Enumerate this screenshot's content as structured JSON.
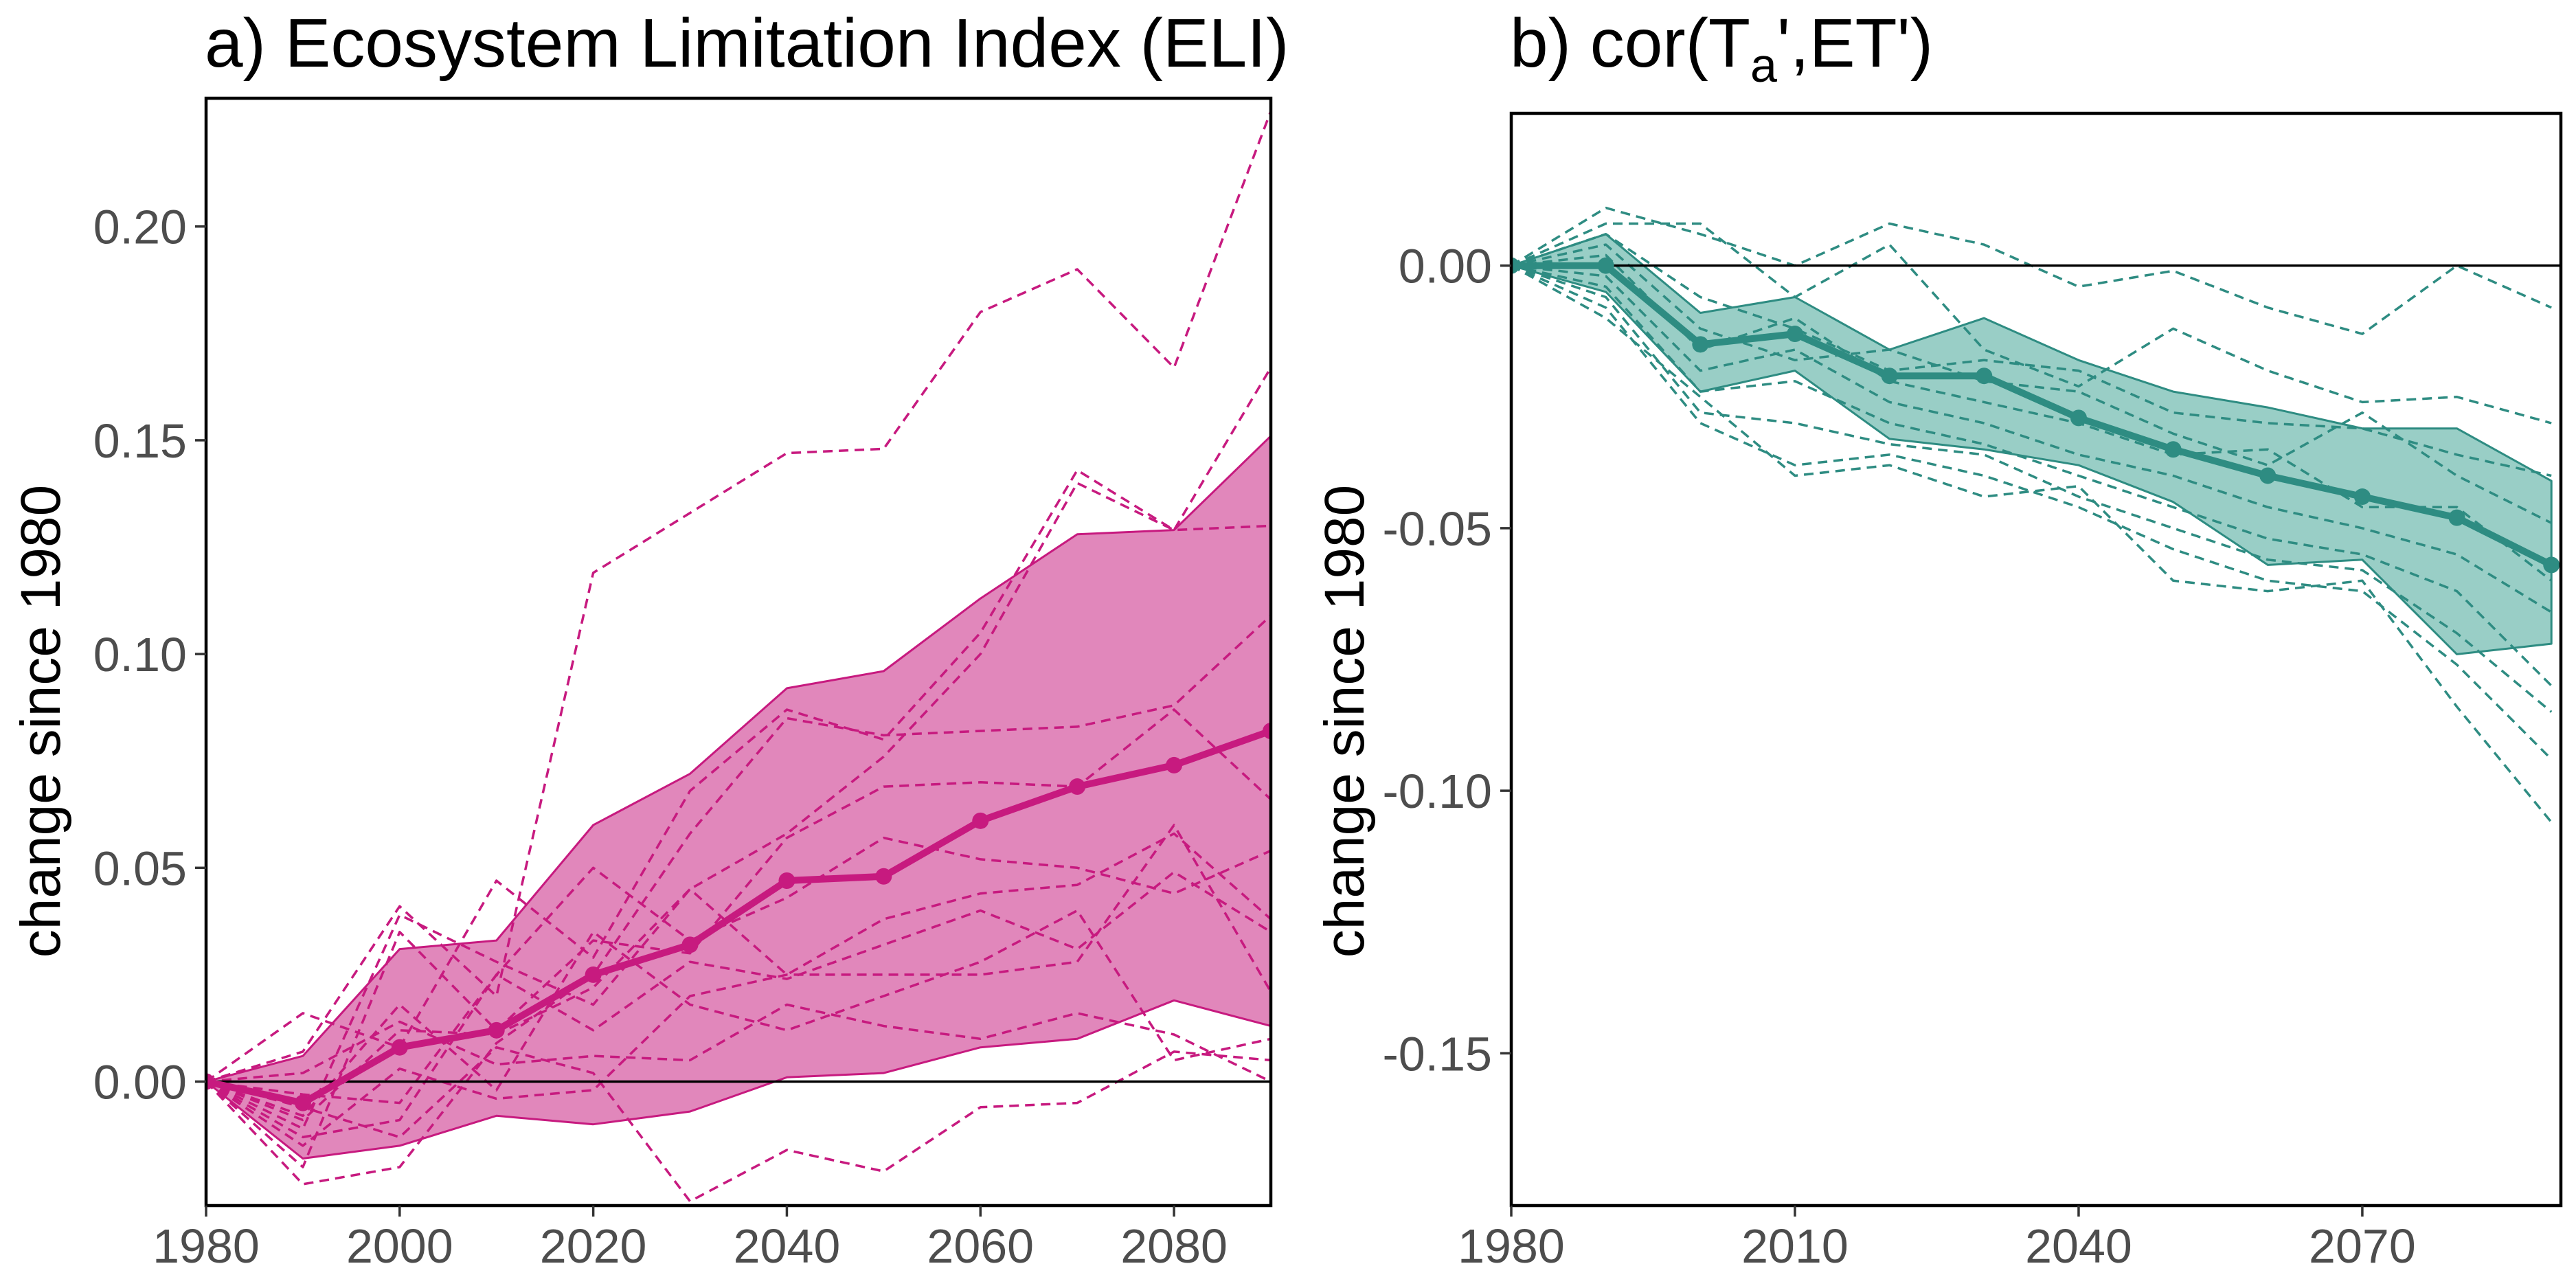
{
  "chart_data": [
    {
      "type": "line",
      "panel": "a",
      "title": "a) Ecosystem Limitation Index (ELI)",
      "ylabel": "change since 1980",
      "xlabel": "",
      "x": [
        1980,
        1990,
        2000,
        2010,
        2020,
        2030,
        2040,
        2050,
        2060,
        2070,
        2080,
        2090
      ],
      "xlim": [
        1980,
        2090
      ],
      "ylim": [
        -0.029,
        0.23
      ],
      "xticks": [
        1980,
        2000,
        2020,
        2040,
        2060,
        2080
      ],
      "xtick_labels": [
        "1980",
        "2000",
        "2020",
        "2040",
        "2060",
        "2080"
      ],
      "yticks": [
        0.0,
        0.05,
        0.1,
        0.15,
        0.2
      ],
      "ytick_labels": [
        "0.00",
        "0.05",
        "0.10",
        "0.15",
        "0.20"
      ],
      "reference_line_y": 0,
      "grid": false,
      "color": "#c71a7f",
      "fill_color": "#e187bb",
      "mean": [
        0.0,
        -0.005,
        0.008,
        0.012,
        0.025,
        0.032,
        0.047,
        0.048,
        0.061,
        0.069,
        0.074,
        0.082
      ],
      "band_upper": [
        0.0,
        0.006,
        0.031,
        0.033,
        0.06,
        0.072,
        0.092,
        0.096,
        0.113,
        0.128,
        0.129,
        0.151
      ],
      "band_lower": [
        0.0,
        -0.018,
        -0.015,
        -0.008,
        -0.01,
        -0.007,
        0.001,
        0.002,
        0.008,
        0.01,
        0.019,
        0.013
      ],
      "members": [
        [
          0.0,
          0.007,
          0.041,
          0.02,
          0.119,
          0.133,
          0.147,
          0.148,
          0.18,
          0.19,
          0.167,
          0.227
        ],
        [
          0.0,
          0.016,
          0.008,
          0.047,
          0.029,
          0.068,
          0.087,
          0.08,
          0.105,
          0.143,
          0.129,
          0.167
        ],
        [
          0.0,
          -0.011,
          0.039,
          0.028,
          0.018,
          0.045,
          0.058,
          0.076,
          0.1,
          0.14,
          0.129,
          0.13
        ],
        [
          0.0,
          -0.024,
          -0.02,
          0.009,
          0.025,
          0.058,
          0.085,
          0.081,
          0.082,
          0.083,
          0.088,
          0.109
        ],
        [
          0.0,
          -0.02,
          0.035,
          0.012,
          0.033,
          0.03,
          0.057,
          0.069,
          0.07,
          0.069,
          0.087,
          0.066
        ],
        [
          0.0,
          -0.013,
          -0.009,
          0.025,
          0.05,
          0.033,
          0.043,
          0.057,
          0.052,
          0.05,
          0.044,
          0.054
        ],
        [
          0.0,
          -0.009,
          0.012,
          0.011,
          0.022,
          0.045,
          0.025,
          0.038,
          0.044,
          0.046,
          0.058,
          0.038
        ],
        [
          0.0,
          -0.003,
          -0.005,
          0.025,
          0.012,
          0.028,
          0.024,
          0.032,
          0.04,
          0.031,
          0.049,
          0.035
        ],
        [
          0.0,
          -0.015,
          0.003,
          -0.004,
          -0.002,
          0.02,
          0.025,
          0.025,
          0.025,
          0.028,
          0.06,
          0.021
        ],
        [
          0.0,
          -0.008,
          0.018,
          -0.002,
          0.035,
          0.018,
          0.012,
          0.02,
          0.028,
          0.04,
          0.005,
          0.01
        ],
        [
          0.0,
          -0.006,
          -0.013,
          0.008,
          0.002,
          -0.028,
          -0.016,
          -0.021,
          -0.006,
          -0.005,
          0.007,
          0.005
        ],
        [
          0.0,
          0.002,
          0.014,
          0.004,
          0.006,
          0.005,
          0.018,
          0.013,
          0.01,
          0.016,
          0.011,
          0.0
        ]
      ]
    },
    {
      "type": "line",
      "panel": "b",
      "title": "b) cor(T",
      "title_subscript": "a",
      "title_suffix": "',ET')",
      "ylabel": "change since 1980",
      "xlabel": "",
      "x": [
        1980,
        1990,
        2000,
        2010,
        2020,
        2030,
        2040,
        2050,
        2060,
        2070,
        2080,
        2090
      ],
      "xlim": [
        1980,
        2091
      ],
      "ylim": [
        -0.179,
        0.029
      ],
      "xticks": [
        1980,
        2010,
        2040,
        2070
      ],
      "xtick_labels": [
        "1980",
        "2010",
        "2040",
        "2070"
      ],
      "yticks": [
        0.0,
        -0.05,
        -0.1,
        -0.15
      ],
      "ytick_labels": [
        "0.00",
        "-0.05",
        "-0.10",
        "-0.15"
      ],
      "reference_line_y": 0,
      "grid": false,
      "color": "#2e8c82",
      "fill_color": "#99cec6",
      "mean": [
        0.0,
        0.0,
        -0.015,
        -0.013,
        -0.021,
        -0.021,
        -0.029,
        -0.035,
        -0.04,
        -0.044,
        -0.048,
        -0.057
      ],
      "band_upper": [
        0.0,
        0.006,
        -0.009,
        -0.006,
        -0.016,
        -0.01,
        -0.018,
        -0.024,
        -0.027,
        -0.031,
        -0.031,
        -0.041
      ],
      "band_lower": [
        0.0,
        -0.005,
        -0.024,
        -0.02,
        -0.033,
        -0.035,
        -0.038,
        -0.045,
        -0.057,
        -0.056,
        -0.074,
        -0.072
      ],
      "members": [
        [
          0.0,
          0.011,
          0.006,
          0.0,
          0.008,
          0.004,
          -0.004,
          -0.001,
          -0.008,
          -0.013,
          0.0,
          -0.008
        ],
        [
          0.0,
          0.008,
          0.008,
          -0.006,
          0.004,
          -0.016,
          -0.023,
          -0.012,
          -0.02,
          -0.026,
          -0.025,
          -0.03
        ],
        [
          0.0,
          0.006,
          -0.006,
          -0.012,
          -0.02,
          -0.018,
          -0.02,
          -0.028,
          -0.03,
          -0.031,
          -0.036,
          -0.04
        ],
        [
          0.0,
          0.004,
          -0.012,
          -0.018,
          -0.016,
          -0.022,
          -0.024,
          -0.032,
          -0.038,
          -0.028,
          -0.04,
          -0.049
        ],
        [
          0.0,
          0.002,
          -0.016,
          -0.01,
          -0.022,
          -0.026,
          -0.03,
          -0.036,
          -0.035,
          -0.046,
          -0.046,
          -0.06
        ],
        [
          0.0,
          -0.002,
          -0.02,
          -0.016,
          -0.026,
          -0.03,
          -0.036,
          -0.04,
          -0.046,
          -0.05,
          -0.055,
          -0.066
        ],
        [
          0.0,
          -0.004,
          -0.024,
          -0.022,
          -0.03,
          -0.034,
          -0.04,
          -0.046,
          -0.052,
          -0.055,
          -0.062,
          -0.08
        ],
        [
          0.0,
          -0.006,
          -0.028,
          -0.03,
          -0.034,
          -0.036,
          -0.044,
          -0.05,
          -0.056,
          -0.058,
          -0.07,
          -0.085
        ],
        [
          0.0,
          -0.008,
          -0.03,
          -0.038,
          -0.036,
          -0.04,
          -0.046,
          -0.054,
          -0.06,
          -0.062,
          -0.076,
          -0.094
        ],
        [
          0.0,
          -0.01,
          -0.025,
          -0.04,
          -0.038,
          -0.044,
          -0.042,
          -0.06,
          -0.062,
          -0.06,
          -0.084,
          -0.106
        ]
      ]
    }
  ]
}
